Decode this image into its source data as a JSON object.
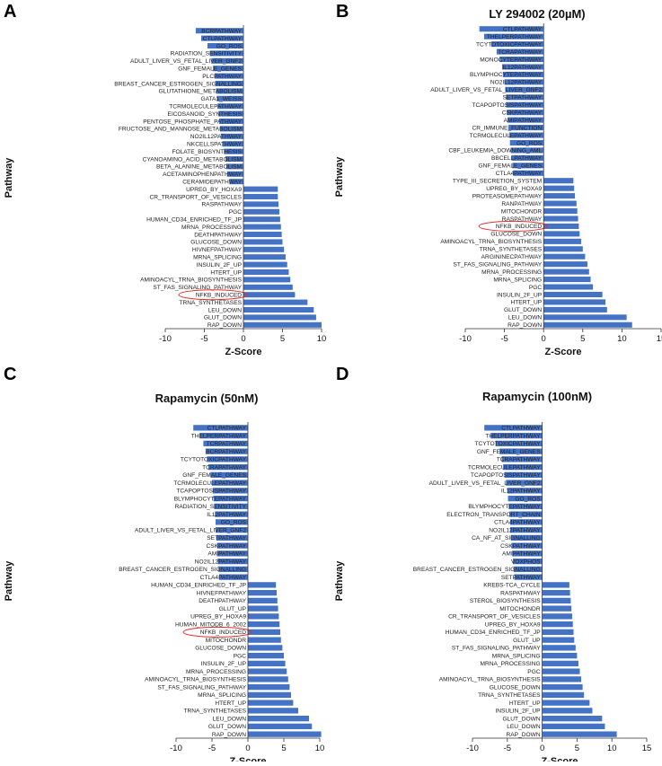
{
  "bar_color": "#4472c4",
  "highlight_color": "#e03030",
  "chart_data": [
    {
      "type": "bar",
      "orientation": "horizontal",
      "letter": "A",
      "title": "",
      "xlabel": "Z-Score",
      "ylabel": "Pathway",
      "xlim": [
        -10,
        10
      ],
      "xticks": [
        -10,
        -5,
        0,
        5,
        10
      ],
      "highlight": "NFKB_INDUCED",
      "categories": [
        "BCRPATHWAY",
        "CTLPATHWAY",
        "GO_ROS",
        "RADIATION_SENSITIVITY",
        "ADULT_LIVER_VS_FETAL_LIVER_GNF2",
        "GNF_FEMALE_GENES",
        "PLCPATHWAY",
        "BREAST_CANCER_ESTROGEN_SIGNALLING",
        "GLUTATHIONE_METABOLISM",
        "GATA1_WEISS",
        "TCRMOLECULEPATHWAY",
        "EICOSANOID_SYNTHESIS",
        "PENTOSE_PHOSPHATE_PATHWAY",
        "FRUCTOSE_AND_MANNOSE_METABOLISM",
        "NO2IL12PATHWAY",
        "NKCELLSPATHWAY",
        "FOLATE_BIOSYNTHESIS",
        "CYANOAMINO_ACID_METABOLISM",
        "BETA_ALANINE_METABOLISM",
        "ACETAMINOPHENPATHWAY",
        "CERAMIDEPATHWAY",
        "UPREG_BY_HOXA9",
        "CR_TRANSPORT_OF_VESICLES",
        "RASPATHWAY",
        "PGC",
        "HUMAN_CD34_ENRICHED_TF_JP",
        "MRNA_PROCESSING",
        "DEATHPATHWAY",
        "GLUCOSE_DOWN",
        "HIVNEFPATHWAY",
        "MRNA_SPLICING",
        "INSULIN_2F_UP",
        "HTERT_UP",
        "AMINOACYL_TRNA_BIOSYNTHESIS",
        "ST_FAS_SIGNALING_PATHWAY",
        "NFKB_INDUCED",
        "TRNA_SYNTHETASES",
        "LEU_DOWN",
        "GLUT_DOWN",
        "RAP_DOWN"
      ],
      "values": [
        -6.1,
        -5.4,
        -4.6,
        -4.3,
        -4.1,
        -3.9,
        -3.7,
        -3.6,
        -3.5,
        -3.4,
        -3.3,
        -3.2,
        -3.1,
        -3.0,
        -2.9,
        -2.7,
        -2.5,
        -2.3,
        -2.2,
        -2.1,
        -1.8,
        4.4,
        4.4,
        4.5,
        4.6,
        4.7,
        4.8,
        4.9,
        5.0,
        5.2,
        5.4,
        5.6,
        5.8,
        6.0,
        6.3,
        6.6,
        8.2,
        9.0,
        9.3,
        10.0
      ]
    },
    {
      "type": "bar",
      "orientation": "horizontal",
      "letter": "B",
      "title": "LY 294002 (20µM)",
      "xlabel": "Z-Score",
      "ylabel": "Pathway",
      "xlim": [
        -10,
        15
      ],
      "xticks": [
        -10,
        -5,
        0,
        5,
        10,
        15
      ],
      "highlight": "NFKB_INDUCED",
      "categories": [
        "CTLPATHWAY",
        "THELPERPATHWAY",
        "TCYTOTOXICPATHWAY",
        "TCRAPATHWAY",
        "MONOCYTEPATHWAY",
        "IL12PATHWAY",
        "BLYMPHOCYTEPATHWAY",
        "NO2IL12PATHWAY",
        "ADULT_LIVER_VS_FETAL_LIVER_GNF2",
        "SETPATHWAY",
        "TCAPOPTOSISPATHWAY",
        "CSKPATHWAY",
        "AMIPATHWAY",
        "CR_IMMUNE_FUNCTION",
        "TCRMOLECULEPATHWAY",
        "GO_ROS",
        "CBF_LEUKEMIA_DOWNING_AML",
        "BBCELLPATHWAY",
        "GNF_FEMALE_GENES",
        "CTLA4PATHWAY",
        "TYPE_III_SECRETION_SYSTEM",
        "UPREG_BY_HOXA9",
        "PROTEASOMEPATHWAY",
        "RANPATHWAY",
        "MITOCHONDR",
        "RASPATHWAY",
        "NFKB_INDUCED",
        "GLUCOSE_DOWN",
        "AMINOACYL_TRNA_BIOSYNTHESIS",
        "TRNA_SYNTHETASES",
        "ARGININECPATHWAY",
        "ST_FAS_SIGNALING_PATHWAY",
        "MRNA_PROCESSING",
        "MRNA_SPLICING",
        "PGC",
        "INSULIN_2F_UP",
        "HTERT_UP",
        "GLUT_DOWN",
        "LEU_DOWN",
        "RAP_DOWN"
      ],
      "values": [
        -8.2,
        -7.6,
        -6.7,
        -6.0,
        -5.6,
        -5.3,
        -5.2,
        -5.0,
        -4.9,
        -4.8,
        -4.8,
        -4.7,
        -4.6,
        -4.5,
        -4.4,
        -4.3,
        -4.2,
        -4.1,
        -4.0,
        -3.9,
        3.8,
        3.9,
        4.0,
        4.2,
        4.3,
        4.4,
        4.5,
        4.6,
        4.8,
        5.0,
        5.3,
        5.6,
        5.8,
        6.0,
        6.3,
        7.5,
        7.9,
        8.1,
        10.6,
        11.3
      ]
    },
    {
      "type": "bar",
      "orientation": "horizontal",
      "letter": "C",
      "title": "Rapamycin (50nM)",
      "xlabel": "Z-Score",
      "ylabel": "Pathway",
      "xlim": [
        -10,
        10
      ],
      "xticks": [
        -10,
        -5,
        0,
        5,
        10
      ],
      "highlight": "NFKB_INDUCED",
      "categories": [
        "CTLPATHWAY",
        "THELPERPATHWAY",
        "TCRPATHWAY",
        "BCRPATHWAY",
        "TCYTOTOXICPATHWAY",
        "TCRAPATHWAY",
        "GNF_FEMALE_GENES",
        "TCRMOLECULEPATHWAY",
        "TCAPOPTOSISPATHWAY",
        "BLYMPHOCYTEPATHWAY",
        "RADIATION_SENSITIVITY",
        "IL12PATHWAY",
        "GO_ROS",
        "ADULT_LIVER_VS_FETAL_LIVER_GNF2",
        "SETPATHWAY",
        "CSKPATHWAY",
        "AMIPATHWAY",
        "NO2IL12PATHWAY",
        "BREAST_CANCER_ESTROGEN_SIGNALLING",
        "CTLA4PATHWAY",
        "HUMAN_CD34_ENRICHED_TF_JP",
        "HIVNEFPATHWAY",
        "DEATHPATHWAY",
        "GLUT_UP",
        "UPREG_BY_HOXA9",
        "HUMAN_MITODB_6_2002",
        "NFKB_INDUCED",
        "MITOCHONDR",
        "GLUCOSE_DOWN",
        "PGC",
        "INSULIN_2F_UP",
        "MRNA_PROCESSING",
        "AMINOACYL_TRNA_BIOSYNTHESIS",
        "ST_FAS_SIGNALING_PATHWAY",
        "MRNA_SPLICING",
        "HTERT_UP",
        "TRNA_SYNTHETASES",
        "LEU_DOWN",
        "GLUT_DOWN",
        "RAP_DOWN"
      ],
      "values": [
        -7.6,
        -6.7,
        -6.2,
        -5.9,
        -5.7,
        -5.5,
        -5.2,
        -5.0,
        -4.9,
        -4.8,
        -4.7,
        -4.6,
        -4.5,
        -4.5,
        -4.4,
        -4.3,
        -4.3,
        -4.2,
        -4.1,
        -4.0,
        3.9,
        4.0,
        4.1,
        4.2,
        4.3,
        4.4,
        4.5,
        4.6,
        4.8,
        5.0,
        5.2,
        5.4,
        5.6,
        5.8,
        6.0,
        6.3,
        7.0,
        8.5,
        8.9,
        10.2
      ]
    },
    {
      "type": "bar",
      "orientation": "horizontal",
      "letter": "D",
      "title": "Rapamycin (100nM)",
      "xlabel": "Z-Score",
      "ylabel": "Pathway",
      "xlim": [
        -10,
        15
      ],
      "xticks": [
        -10,
        -5,
        0,
        5,
        10,
        15
      ],
      "highlight": "",
      "categories": [
        "CTLPATHWAY",
        "THELPERPATHWAY",
        "TCYTOTOXICPATHWAY",
        "GNF_FEMALE_GENES",
        "TCRAPATHWAY",
        "TCRMOLECULEPATHWAY",
        "TCAPOPTOSISPATHWAY",
        "ADULT_LIVER_VS_FETAL_LIVER_GNF2",
        "IL12PATHWAY",
        "GO_ROS",
        "BLYMPHOCYTEPATHWAY",
        "ELECTRON_TRANSPORT_CHAIN",
        "CTLA4PATHWAY",
        "NO2IL12PATHWAY",
        "CA_NF_AT_SIGNALLING",
        "CSKPATHWAY",
        "AMIPATHWAY",
        "VOXPHOS",
        "BREAST_CANCER_ESTROGEN_SIGNALLING",
        "SETPATHWAY",
        "KREBS-TCA_CYCLE",
        "RASPATHWAY",
        "STEROL_BIOSYNTHESIS",
        "MITOCHONDR",
        "CR_TRANSPORT_OF_VESICLES",
        "UPREG_BY_HOXA9",
        "HUMAN_CD34_ENRICHED_TF_JP",
        "GLUT_UP",
        "ST_FAS_SIGNALING_PATHWAY",
        "MRNA_SPLICING",
        "MRNA_PROCESSING",
        "PGC",
        "AMINOACYL_TRNA_BIOSYNTHESIS",
        "GLUCOSE_DOWN",
        "TRNA_SYNTHETASES",
        "HTERT_UP",
        "INSULIN_2F_UP",
        "GLUT_DOWN",
        "LEU_DOWN",
        "RAP_DOWN"
      ],
      "values": [
        -8.3,
        -7.4,
        -6.7,
        -6.1,
        -5.8,
        -5.6,
        -5.4,
        -5.2,
        -5.0,
        -4.9,
        -4.8,
        -4.7,
        -4.6,
        -4.6,
        -4.5,
        -4.4,
        -4.3,
        -4.2,
        -4.1,
        -4.0,
        3.9,
        4.0,
        4.1,
        4.2,
        4.3,
        4.4,
        4.5,
        4.6,
        4.8,
        5.0,
        5.2,
        5.4,
        5.6,
        5.8,
        6.0,
        6.8,
        7.2,
        8.6,
        9.0,
        10.7
      ]
    }
  ]
}
